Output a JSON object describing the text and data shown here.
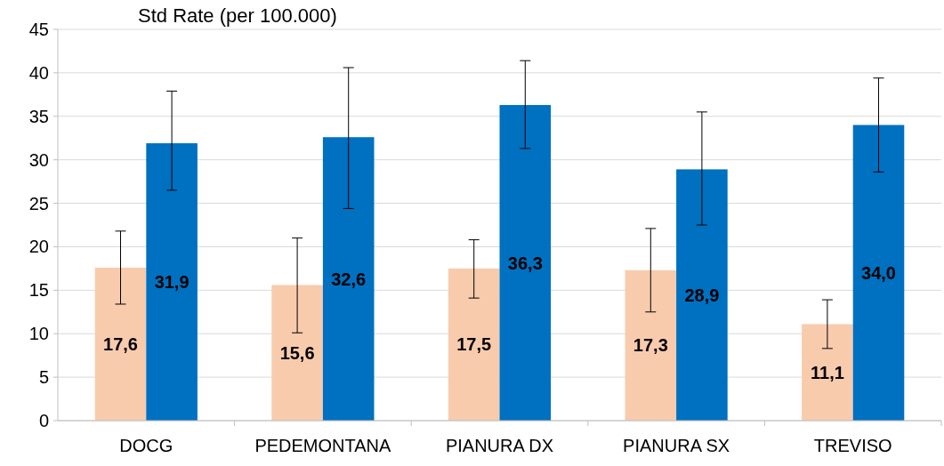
{
  "chart_data": {
    "type": "bar",
    "title": "Std Rate (per 100.000)",
    "categories": [
      "DOCG",
      "PEDEMONTANA",
      "PIANURA DX",
      "PIANURA SX",
      "TREVISO"
    ],
    "series": [
      {
        "color": "#f8cbad",
        "values": [
          17.6,
          15.6,
          17.5,
          17.3,
          11.1
        ],
        "value_labels": [
          "17,6",
          "15,6",
          "17,5",
          "17,3",
          "11,1"
        ],
        "errors": [
          [
            13.4,
            21.8
          ],
          [
            10.1,
            21.0
          ],
          [
            14.1,
            20.8
          ],
          [
            12.5,
            22.1
          ],
          [
            8.3,
            13.9
          ]
        ]
      },
      {
        "color": "#0070c0",
        "values": [
          31.9,
          32.6,
          36.3,
          28.9,
          34.0
        ],
        "value_labels": [
          "31,9",
          "32,6",
          "36,3",
          "28,9",
          "34,0"
        ],
        "errors": [
          [
            26.5,
            37.9
          ],
          [
            24.4,
            40.6
          ],
          [
            31.3,
            41.4
          ],
          [
            22.5,
            35.5
          ],
          [
            28.6,
            39.4
          ]
        ]
      }
    ],
    "ylim": [
      0,
      45
    ],
    "yticks": [
      0,
      5,
      10,
      15,
      20,
      25,
      30,
      35,
      40,
      45
    ],
    "grid": "y"
  }
}
